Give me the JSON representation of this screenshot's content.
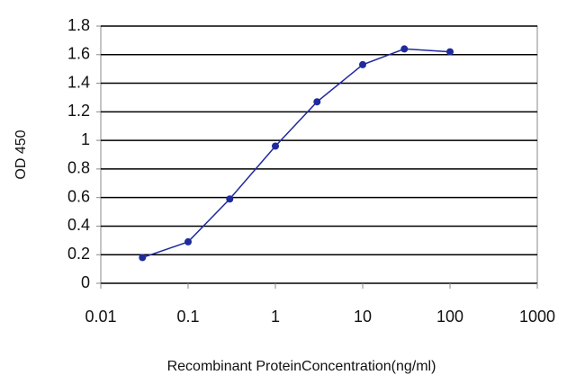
{
  "chart_data": {
    "type": "line",
    "x_label": "Recombinant ProteinConcentration(ng/ml)",
    "y_label": "OD 450",
    "x_log": true,
    "xlim": [
      0.01,
      1000
    ],
    "xticks": [
      0.01,
      0.1,
      1,
      10,
      100,
      1000
    ],
    "ylim": [
      0,
      1.8
    ],
    "yticks": [
      0,
      0.2,
      0.4,
      0.6,
      0.8,
      1,
      1.2,
      1.4,
      1.6,
      1.8
    ],
    "grid": true,
    "series": [
      {
        "color": "#1f2a9c",
        "x": [
          0.03,
          0.1,
          0.3,
          1,
          3,
          10,
          30,
          100
        ],
        "values": [
          0.18,
          0.29,
          0.59,
          0.96,
          1.27,
          1.53,
          1.64,
          1.62
        ]
      }
    ]
  }
}
